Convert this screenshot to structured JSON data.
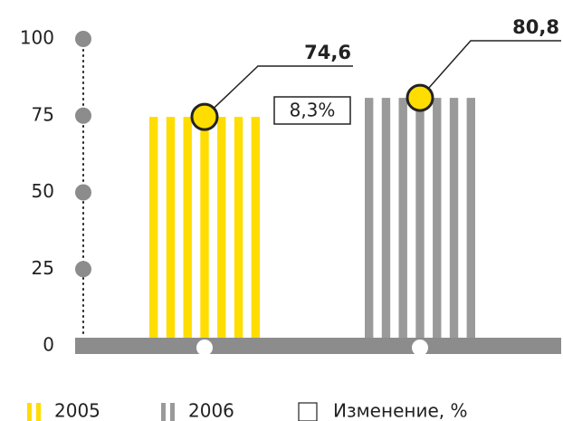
{
  "chart_data": {
    "type": "bar",
    "series": [
      {
        "name": "2005",
        "color": "#ffdd00",
        "values": [
          74.6
        ],
        "value_labels": [
          "74,6"
        ]
      },
      {
        "name": "2006",
        "color": "#9a9a9a",
        "values": [
          80.8
        ],
        "value_labels": [
          "80,8"
        ]
      }
    ],
    "change": {
      "name": "Изменение, %",
      "value": 8.3,
      "label": "8,3%"
    },
    "ylim": [
      0,
      100
    ],
    "yticks": [
      0,
      25,
      50,
      75,
      100
    ]
  }
}
